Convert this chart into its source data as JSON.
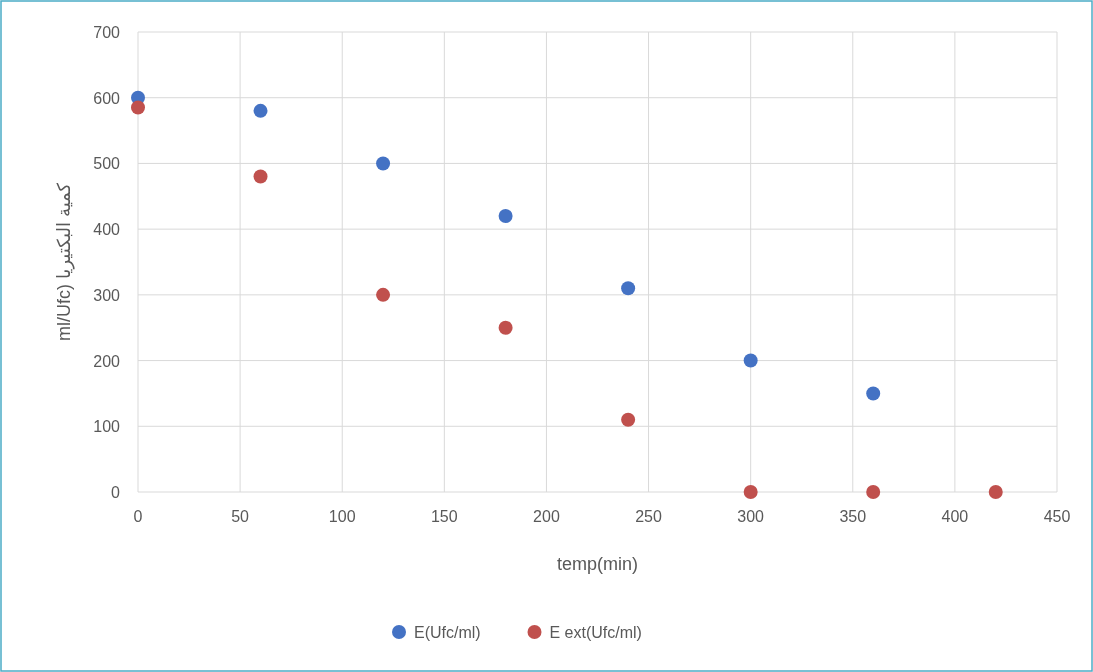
{
  "chart_data": {
    "type": "scatter",
    "xlabel": "temp(min)",
    "ylabel": "ml/Ufc) كمية البكتيريا",
    "xlim": [
      0,
      450
    ],
    "xticks": [
      0,
      50,
      100,
      150,
      200,
      250,
      300,
      350,
      400,
      450
    ],
    "ylim": [
      0,
      700
    ],
    "yticks": [
      0,
      100,
      200,
      300,
      400,
      500,
      600,
      700
    ],
    "grid": true,
    "legend": "bottom",
    "marker": "circle",
    "series": [
      {
        "name": "E(Ufc/ml)",
        "color": "#4472c4",
        "x": [
          0,
          60,
          120,
          180,
          240,
          300,
          360
        ],
        "values": [
          600,
          580,
          500,
          420,
          310,
          200,
          150
        ]
      },
      {
        "name": "E ext(Ufc/ml)",
        "color": "#c0504d",
        "x": [
          0,
          60,
          120,
          180,
          240,
          300,
          360,
          420
        ],
        "values": [
          585,
          480,
          300,
          250,
          110,
          0,
          0,
          0
        ]
      }
    ]
  }
}
